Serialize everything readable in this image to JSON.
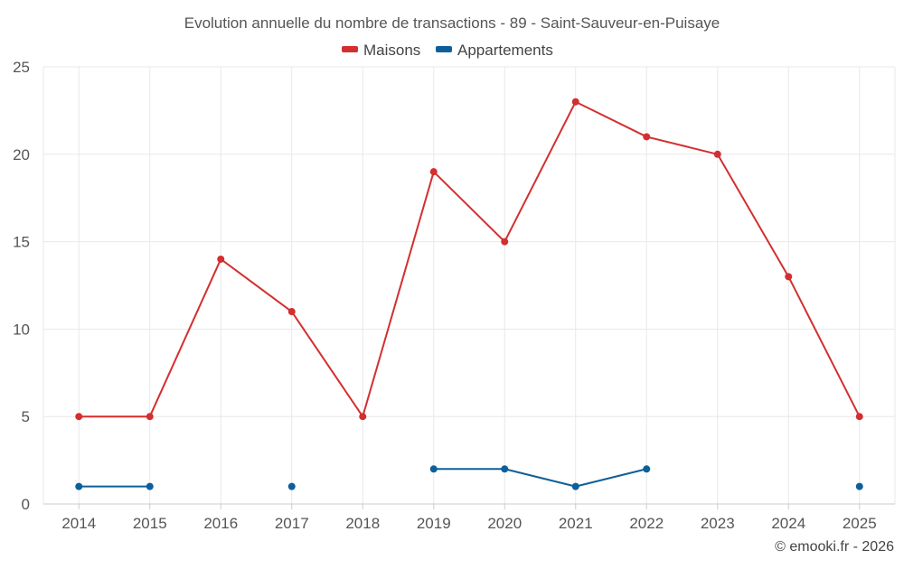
{
  "chart_data": {
    "type": "line",
    "title": "Evolution annuelle du nombre de transactions - 89 - Saint-Sauveur-en-Puisaye",
    "categories": [
      "2014",
      "2015",
      "2016",
      "2017",
      "2018",
      "2019",
      "2020",
      "2021",
      "2022",
      "2023",
      "2024",
      "2025"
    ],
    "ylim": [
      0,
      25
    ],
    "yticks": [
      0,
      5,
      10,
      15,
      20,
      25
    ],
    "xlabel": "",
    "ylabel": "",
    "grid": true,
    "legend_position": "top-center",
    "series": [
      {
        "name": "Maisons",
        "color": "#d32f2f",
        "values": [
          5,
          5,
          14,
          11,
          5,
          19,
          15,
          23,
          21,
          20,
          13,
          5
        ]
      },
      {
        "name": "Appartements",
        "color": "#0d5f9a",
        "values": [
          1,
          1,
          null,
          1,
          null,
          2,
          2,
          1,
          2,
          null,
          null,
          1
        ]
      }
    ]
  },
  "credit": "© emooki.fr - 2026"
}
